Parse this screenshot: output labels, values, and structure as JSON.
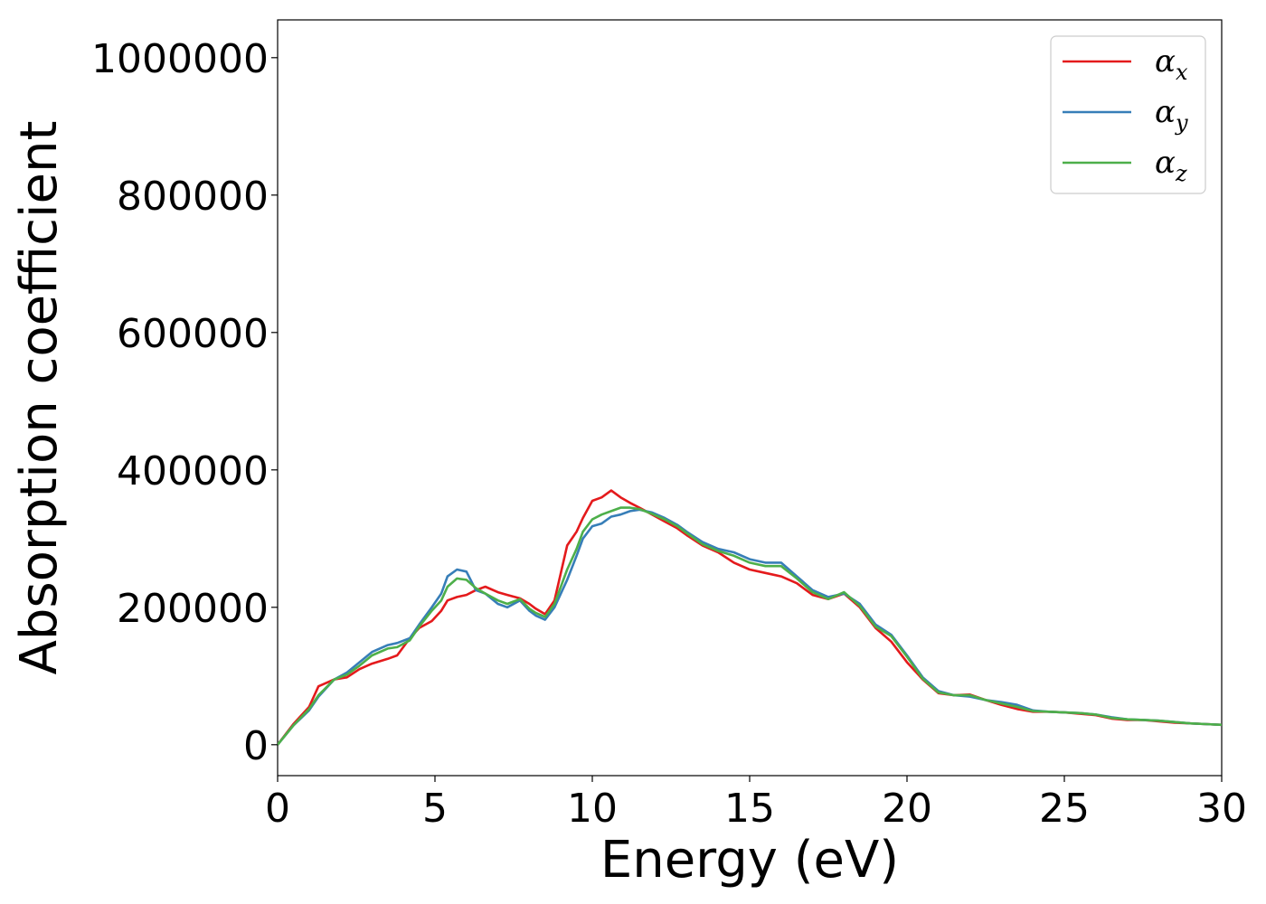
{
  "chart_data": {
    "type": "line",
    "xlabel": "Energy (eV)",
    "ylabel": "Absorption coefficient",
    "xlim": [
      0,
      30
    ],
    "ylim": [
      -45000,
      1055000
    ],
    "xticks": [
      0,
      5,
      10,
      15,
      20,
      25,
      30
    ],
    "xtick_labels": [
      "0",
      "5",
      "10",
      "15",
      "20",
      "25",
      "30"
    ],
    "yticks": [
      0,
      200000,
      400000,
      600000,
      800000,
      1000000
    ],
    "ytick_labels": [
      "0",
      "200000",
      "400000",
      "600000",
      "800000",
      "1000000"
    ],
    "grid": false,
    "legend_position": "top-right",
    "series": [
      {
        "name": "αx",
        "name_base": "α",
        "name_sub": "x",
        "color": "#e41a1c",
        "x": [
          0,
          0.5,
          1,
          1.3,
          1.8,
          2.2,
          2.6,
          3,
          3.5,
          3.8,
          4.2,
          4.5,
          4.9,
          5.2,
          5.4,
          5.7,
          6,
          6.3,
          6.6,
          7,
          7.3,
          7.7,
          8,
          8.2,
          8.5,
          8.8,
          9.2,
          9.5,
          9.7,
          10,
          10.3,
          10.6,
          10.9,
          11.2,
          11.5,
          11.9,
          12.3,
          12.7,
          13,
          13.5,
          14,
          14.5,
          15,
          15.5,
          16,
          16.5,
          17,
          17.5,
          18,
          18.5,
          19,
          19.5,
          20,
          20.5,
          21,
          21.5,
          22,
          22.5,
          23,
          23.5,
          24,
          24.5,
          25,
          25.5,
          26,
          26.5,
          27,
          27.5,
          28,
          28.5,
          29,
          29.5,
          30
        ],
        "y": [
          0,
          30000,
          55000,
          85000,
          95000,
          98000,
          110000,
          118000,
          125000,
          130000,
          155000,
          170000,
          180000,
          195000,
          210000,
          215000,
          218000,
          225000,
          230000,
          222000,
          218000,
          213000,
          205000,
          198000,
          190000,
          210000,
          290000,
          310000,
          330000,
          355000,
          360000,
          370000,
          360000,
          352000,
          345000,
          335000,
          325000,
          315000,
          305000,
          290000,
          280000,
          265000,
          255000,
          250000,
          245000,
          235000,
          218000,
          212000,
          220000,
          200000,
          170000,
          150000,
          120000,
          95000,
          75000,
          72000,
          73000,
          65000,
          58000,
          52000,
          48000,
          48000,
          47000,
          45000,
          43000,
          38000,
          36000,
          36000,
          34000,
          32000,
          31000,
          30000,
          29000
        ]
      },
      {
        "name": "αy",
        "name_base": "α",
        "name_sub": "y",
        "color": "#377eb8",
        "x": [
          0,
          0.5,
          1,
          1.3,
          1.8,
          2.2,
          2.6,
          3,
          3.5,
          3.8,
          4.2,
          4.5,
          4.9,
          5.2,
          5.4,
          5.7,
          6,
          6.3,
          6.6,
          7,
          7.3,
          7.7,
          8,
          8.2,
          8.5,
          8.8,
          9.2,
          9.5,
          9.7,
          10,
          10.3,
          10.6,
          10.9,
          11.2,
          11.5,
          11.9,
          12.3,
          12.7,
          13,
          13.5,
          14,
          14.5,
          15,
          15.5,
          16,
          16.5,
          17,
          17.5,
          18,
          18.5,
          19,
          19.5,
          20,
          20.5,
          21,
          21.5,
          22,
          22.5,
          23,
          23.5,
          24,
          24.5,
          25,
          25.5,
          26,
          26.5,
          27,
          27.5,
          28,
          28.5,
          29,
          29.5,
          30
        ],
        "y": [
          0,
          28000,
          50000,
          70000,
          95000,
          105000,
          120000,
          135000,
          145000,
          148000,
          155000,
          175000,
          200000,
          220000,
          245000,
          255000,
          252000,
          225000,
          220000,
          205000,
          200000,
          210000,
          195000,
          188000,
          182000,
          200000,
          240000,
          275000,
          300000,
          318000,
          322000,
          332000,
          335000,
          340000,
          342000,
          338000,
          330000,
          320000,
          310000,
          295000,
          285000,
          280000,
          270000,
          265000,
          265000,
          245000,
          225000,
          215000,
          220000,
          205000,
          175000,
          160000,
          130000,
          98000,
          78000,
          72000,
          70000,
          65000,
          62000,
          58000,
          50000,
          48000,
          47000,
          46000,
          44000,
          40000,
          37000,
          36000,
          35000,
          33000,
          31000,
          30000,
          29000
        ]
      },
      {
        "name": "αz",
        "name_base": "α",
        "name_sub": "z",
        "color": "#4daf4a",
        "x": [
          0,
          0.5,
          1,
          1.3,
          1.8,
          2.2,
          2.6,
          3,
          3.5,
          3.8,
          4.2,
          4.5,
          4.9,
          5.2,
          5.4,
          5.7,
          6,
          6.3,
          6.6,
          7,
          7.3,
          7.7,
          8,
          8.2,
          8.5,
          8.8,
          9.2,
          9.5,
          9.7,
          10,
          10.3,
          10.6,
          10.9,
          11.2,
          11.5,
          11.9,
          12.3,
          12.7,
          13,
          13.5,
          14,
          14.5,
          15,
          15.5,
          16,
          16.5,
          17,
          17.5,
          18,
          18.5,
          19,
          19.5,
          20,
          20.5,
          21,
          21.5,
          22,
          22.5,
          23,
          23.5,
          24,
          24.5,
          25,
          25.5,
          26,
          26.5,
          27,
          27.5,
          28,
          28.5,
          29,
          29.5,
          30
        ],
        "y": [
          0,
          28000,
          52000,
          72000,
          95000,
          102000,
          115000,
          130000,
          140000,
          142000,
          152000,
          172000,
          195000,
          210000,
          230000,
          242000,
          240000,
          228000,
          220000,
          210000,
          205000,
          212000,
          198000,
          192000,
          186000,
          205000,
          255000,
          285000,
          310000,
          328000,
          335000,
          340000,
          345000,
          345000,
          343000,
          336000,
          328000,
          318000,
          308000,
          292000,
          282000,
          275000,
          265000,
          260000,
          260000,
          242000,
          222000,
          212000,
          222000,
          202000,
          172000,
          158000,
          128000,
          96000,
          76000,
          72000,
          72000,
          65000,
          60000,
          55000,
          49000,
          48000,
          47000,
          46000,
          44000,
          39000,
          37000,
          36000,
          35000,
          33000,
          31000,
          30000,
          29000
        ]
      }
    ]
  }
}
